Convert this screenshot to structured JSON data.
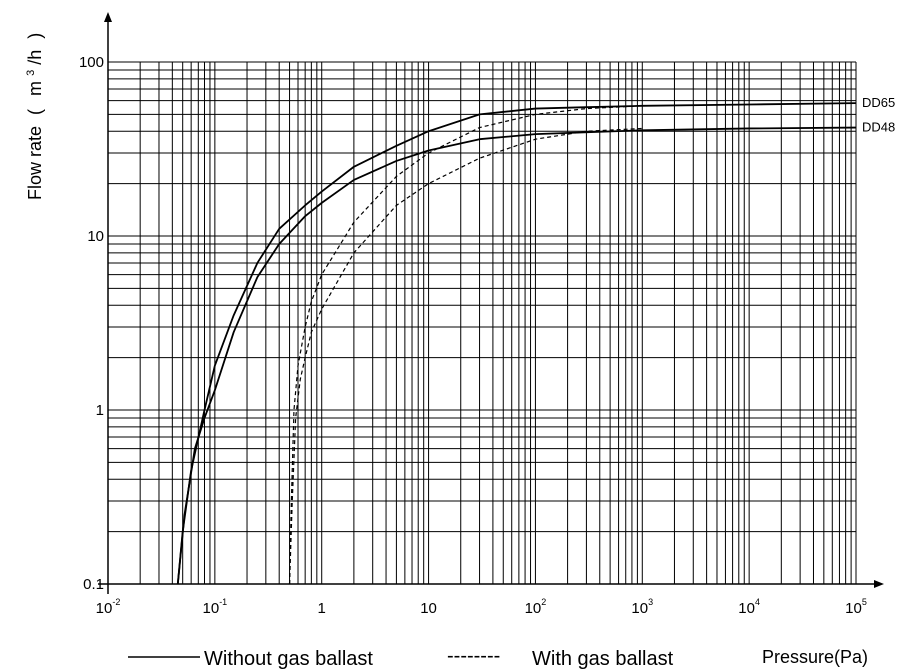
{
  "chart_data": {
    "type": "line",
    "ylabel_main": "Flow rate",
    "ylabel_paren_open": "(",
    "ylabel_unit_base": "m",
    "ylabel_unit_exp": "3",
    "ylabel_unit_rest": "/h",
    "ylabel_paren_close": ")",
    "xlabel": "Pressure(Pa)",
    "xscale": "log",
    "yscale": "log",
    "xlim": [
      0.01,
      100000
    ],
    "ylim": [
      0.1,
      100
    ],
    "grid": true,
    "x_ticks": [
      {
        "base": "10",
        "exp": "-2",
        "value": 0.01
      },
      {
        "base": "10",
        "exp": "-1",
        "value": 0.1
      },
      {
        "base": "1",
        "exp": "",
        "value": 1
      },
      {
        "base": "10",
        "exp": "",
        "value": 10
      },
      {
        "base": "10",
        "exp": "2",
        "value": 100
      },
      {
        "base": "10",
        "exp": "3",
        "value": 1000
      },
      {
        "base": "10",
        "exp": "4",
        "value": 10000
      },
      {
        "base": "10",
        "exp": "5",
        "value": 100000
      }
    ],
    "y_ticks": [
      {
        "label": "0.1",
        "value": 0.1
      },
      {
        "label": "1",
        "value": 1
      },
      {
        "label": "10",
        "value": 10
      },
      {
        "label": "100",
        "value": 100
      }
    ],
    "legend": {
      "solid_label": "Without gas ballast",
      "dashed_label": "With gas ballast",
      "dashed_sample": "--------"
    },
    "series": [
      {
        "name": "DD65",
        "style": "solid",
        "points": [
          [
            0.045,
            0.1
          ],
          [
            0.05,
            0.2
          ],
          [
            0.06,
            0.45
          ],
          [
            0.08,
            1.0
          ],
          [
            0.1,
            1.8
          ],
          [
            0.15,
            3.5
          ],
          [
            0.25,
            7.0
          ],
          [
            0.4,
            11
          ],
          [
            0.7,
            15
          ],
          [
            1,
            18
          ],
          [
            2,
            25
          ],
          [
            5,
            33
          ],
          [
            10,
            40
          ],
          [
            30,
            50
          ],
          [
            100,
            54
          ],
          [
            300,
            55
          ],
          [
            1000,
            56
          ],
          [
            10000,
            57
          ],
          [
            100000,
            58
          ]
        ]
      },
      {
        "name": "DD48",
        "style": "solid",
        "points": [
          [
            0.045,
            0.1
          ],
          [
            0.052,
            0.25
          ],
          [
            0.065,
            0.6
          ],
          [
            0.08,
            0.9
          ],
          [
            0.1,
            1.3
          ],
          [
            0.15,
            2.8
          ],
          [
            0.25,
            5.8
          ],
          [
            0.4,
            9
          ],
          [
            0.7,
            13
          ],
          [
            1,
            15.5
          ],
          [
            2,
            21
          ],
          [
            5,
            27
          ],
          [
            10,
            31
          ],
          [
            30,
            36
          ],
          [
            100,
            38.5
          ],
          [
            1000,
            40.5
          ],
          [
            10000,
            41.5
          ],
          [
            100000,
            42
          ]
        ]
      },
      {
        "name": "",
        "style": "dashed",
        "points": [
          [
            0.5,
            0.1
          ],
          [
            0.52,
            0.3
          ],
          [
            0.55,
            1.0
          ],
          [
            0.6,
            1.8
          ],
          [
            0.7,
            3.0
          ],
          [
            0.8,
            4.2
          ],
          [
            1,
            6
          ],
          [
            2,
            12
          ],
          [
            5,
            22
          ],
          [
            10,
            30
          ],
          [
            30,
            42
          ],
          [
            100,
            50
          ],
          [
            300,
            54
          ],
          [
            1000,
            56
          ]
        ]
      },
      {
        "name": "",
        "style": "dashed",
        "points": [
          [
            0.5,
            0.1
          ],
          [
            0.53,
            0.3
          ],
          [
            0.57,
            0.9
          ],
          [
            0.63,
            1.5
          ],
          [
            0.7,
            2.0
          ],
          [
            0.8,
            2.8
          ],
          [
            1,
            3.8
          ],
          [
            2,
            8
          ],
          [
            5,
            15
          ],
          [
            10,
            20
          ],
          [
            30,
            28
          ],
          [
            100,
            36
          ],
          [
            300,
            40
          ],
          [
            1000,
            41.5
          ]
        ]
      }
    ]
  }
}
